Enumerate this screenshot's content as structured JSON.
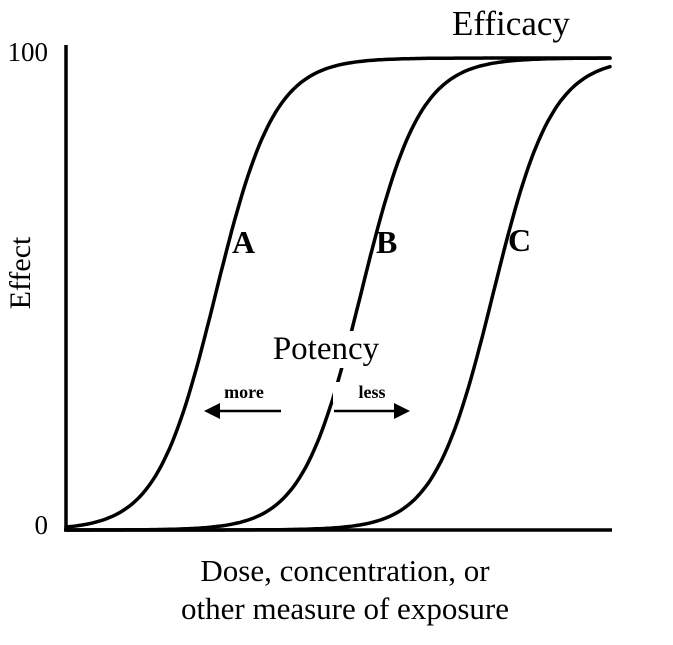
{
  "figure": {
    "efficacy_label": "Efficacy",
    "potency": {
      "title": "Potency",
      "more": "more",
      "less": "less"
    },
    "y_axis": {
      "max_label": "100",
      "min_label": "0",
      "title": "Effect"
    },
    "x_axis": {
      "label_line1": "Dose, concentration, or",
      "label_line2": "other measure of exposure"
    }
  },
  "chart_data": {
    "type": "line",
    "title": "",
    "xlabel": "Dose, concentration, or other measure of exposure",
    "ylabel": "Effect",
    "xlim": [
      0,
      10
    ],
    "ylim": [
      0,
      100
    ],
    "y_ticks": [
      0,
      100
    ],
    "x_ticks": [],
    "grid": false,
    "legend": "none",
    "line_color": "#000000",
    "series": [
      {
        "name": "A",
        "shape": "sigmoid",
        "ec50": 2.75,
        "steepness": 1.85,
        "max_effect": 100,
        "points": [
          {
            "x": 0,
            "y": 1
          },
          {
            "x": 1.6,
            "y": 10
          },
          {
            "x": 2.75,
            "y": 50
          },
          {
            "x": 3.9,
            "y": 90
          },
          {
            "x": 5.5,
            "y": 99
          },
          {
            "x": 10,
            "y": 100
          }
        ]
      },
      {
        "name": "B",
        "shape": "sigmoid",
        "ec50": 5.42,
        "steepness": 1.85,
        "max_effect": 100,
        "points": [
          {
            "x": 2.5,
            "y": 1
          },
          {
            "x": 4.2,
            "y": 10
          },
          {
            "x": 5.42,
            "y": 50
          },
          {
            "x": 6.6,
            "y": 90
          },
          {
            "x": 8.2,
            "y": 99
          },
          {
            "x": 10,
            "y": 100
          }
        ]
      },
      {
        "name": "C",
        "shape": "sigmoid",
        "ec50": 7.85,
        "steepness": 1.85,
        "max_effect": 100,
        "points": [
          {
            "x": 5.0,
            "y": 1
          },
          {
            "x": 6.7,
            "y": 10
          },
          {
            "x": 7.85,
            "y": 50
          },
          {
            "x": 9.0,
            "y": 90
          },
          {
            "x": 10,
            "y": 98
          }
        ]
      }
    ],
    "annotations": {
      "efficacy": "Efficacy",
      "potency": "Potency",
      "potency_more": "more",
      "potency_less": "less",
      "arrows": [
        {
          "direction": "left",
          "label": "more"
        },
        {
          "direction": "right",
          "label": "less"
        }
      ]
    }
  }
}
